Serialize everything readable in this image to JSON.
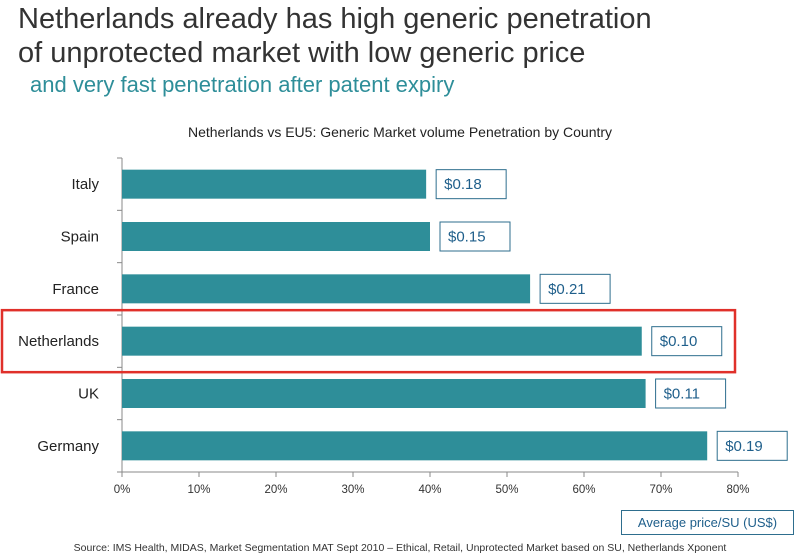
{
  "header": {
    "title_line1": "Netherlands already has high generic penetration",
    "title_line2": "of unprotected market with low generic price",
    "subtitle": "and very fast penetration after patent expiry"
  },
  "chart_data": {
    "type": "bar",
    "orientation": "horizontal",
    "title": "Netherlands vs EU5: Generic Market volume Penetration by Country",
    "categories": [
      "Italy",
      "Spain",
      "France",
      "Netherlands",
      "UK",
      "Germany"
    ],
    "values": [
      39.5,
      40,
      53,
      67.5,
      68,
      76
    ],
    "value_unit": "%",
    "price_labels": [
      "$0.18",
      "$0.15",
      "$0.21",
      "$0.10",
      "$0.11",
      "$0.19"
    ],
    "xlim": [
      0,
      80
    ],
    "xticks": [
      "0%",
      "10%",
      "20%",
      "30%",
      "40%",
      "50%",
      "60%",
      "70%",
      "80%"
    ],
    "highlight": "Netherlands",
    "grid": false,
    "bar_color": "#2e8e99",
    "highlight_color": "#e0302a",
    "label_color": "#1f5f8b",
    "legend_label": "Average price/SU (US$)",
    "legend_position": "bottom-right"
  },
  "footer": {
    "source": "Source: IMS Health, MIDAS, Market Segmentation MAT Sept 2010 – Ethical, Retail, Unprotected Market based on SU, Netherlands Xponent"
  }
}
